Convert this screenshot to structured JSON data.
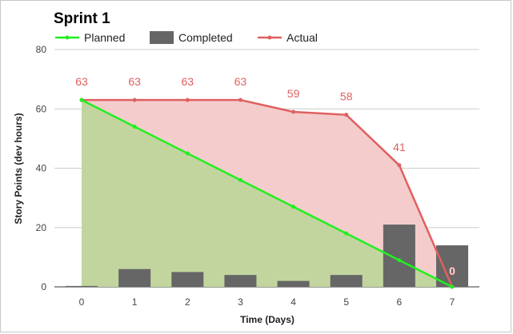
{
  "chart_data": {
    "type": "line",
    "title": "Sprint 1",
    "xlabel": "Time (Days)",
    "ylabel": "Story Points (dev hours)",
    "x": [
      0,
      1,
      2,
      3,
      4,
      5,
      6,
      7
    ],
    "xlim": [
      0,
      7
    ],
    "ylim": [
      0,
      80
    ],
    "yticks": [
      0,
      20,
      40,
      60,
      80
    ],
    "grid": true,
    "legend": "top-left",
    "series": [
      {
        "name": "Planned",
        "type": "area-line",
        "values": [
          63,
          54,
          45,
          36,
          27,
          18,
          9,
          0
        ],
        "color": "#22ee22",
        "fill": "#c2d59e"
      },
      {
        "name": "Completed",
        "type": "bar",
        "values": [
          0.3,
          6,
          5,
          4,
          2,
          4,
          21,
          14
        ],
        "color": "#666666"
      },
      {
        "name": "Actual",
        "type": "area-line",
        "values": [
          63,
          63,
          63,
          63,
          59,
          58,
          41,
          0
        ],
        "color": "#e06060",
        "fill": "#f4cccc",
        "labels": [
          "63",
          "63",
          "63",
          "63",
          "59",
          "58",
          "41",
          "0"
        ]
      }
    ]
  }
}
